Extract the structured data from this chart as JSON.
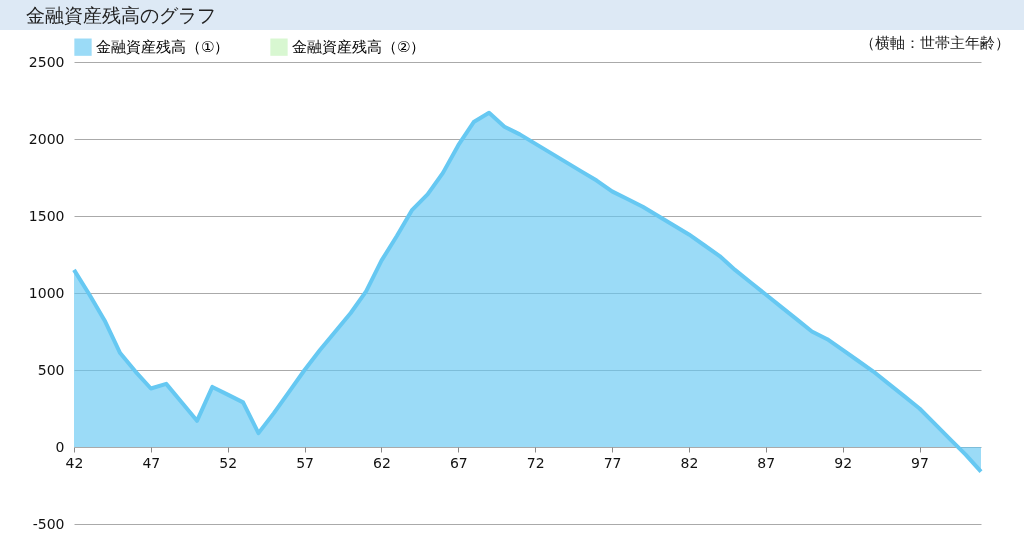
{
  "chart_data": {
    "type": "area",
    "title": "金融資産残高のグラフ",
    "annotations": [
      "（横軸：世帯主年齢）"
    ],
    "x": [
      42,
      43,
      44,
      45,
      46,
      47,
      48,
      49,
      50,
      51,
      52,
      53,
      54,
      55,
      56,
      57,
      58,
      59,
      60,
      61,
      62,
      63,
      64,
      65,
      66,
      67,
      68,
      69,
      70,
      71,
      72,
      73,
      74,
      75,
      76,
      77,
      78,
      79,
      80,
      81,
      82,
      83,
      84,
      85,
      86,
      87,
      88,
      89,
      90,
      91,
      92,
      93,
      94,
      95,
      96,
      97,
      98,
      99,
      100,
      101
    ],
    "series": [
      {
        "name": "金融資産残高（①）",
        "color": "#66c8f2",
        "values": [
          1150,
          990,
          820,
          610,
          490,
          380,
          410,
          290,
          170,
          390,
          340,
          290,
          90,
          220,
          360,
          500,
          630,
          750,
          870,
          1010,
          1210,
          1370,
          1540,
          1640,
          1780,
          1960,
          2110,
          2170,
          2080,
          2030,
          1970,
          1910,
          1850,
          1790,
          1730,
          1660,
          1610,
          1560,
          1500,
          1440,
          1380,
          1310,
          1240,
          1150,
          1070,
          990,
          910,
          830,
          750,
          700,
          630,
          560,
          490,
          410,
          330,
          250,
          150,
          50,
          -50,
          -160
        ]
      },
      {
        "name": "金融資産残高（②）",
        "color": "#c3f2b8",
        "values": [
          null,
          null,
          null,
          null,
          null,
          null,
          null,
          null,
          null,
          null,
          null,
          null,
          null,
          null,
          null,
          null,
          null,
          null,
          null,
          null,
          null,
          null,
          null,
          null,
          null,
          null,
          null,
          null,
          null,
          null,
          null,
          null,
          null,
          null,
          null,
          null,
          null,
          null,
          null,
          null,
          null,
          null,
          null,
          null,
          null,
          null,
          null,
          null,
          null,
          null,
          null,
          null,
          null,
          null,
          null,
          null,
          null,
          null,
          null,
          null
        ]
      }
    ],
    "xlim": [
      42,
      101
    ],
    "xticks": [
      42,
      47,
      52,
      57,
      62,
      67,
      72,
      77,
      82,
      87,
      92,
      97
    ],
    "ylim": [
      -500,
      2500
    ],
    "yticks": [
      -500,
      0,
      500,
      1000,
      1500,
      2000,
      2500
    ],
    "grid": "y",
    "legend": "top"
  }
}
